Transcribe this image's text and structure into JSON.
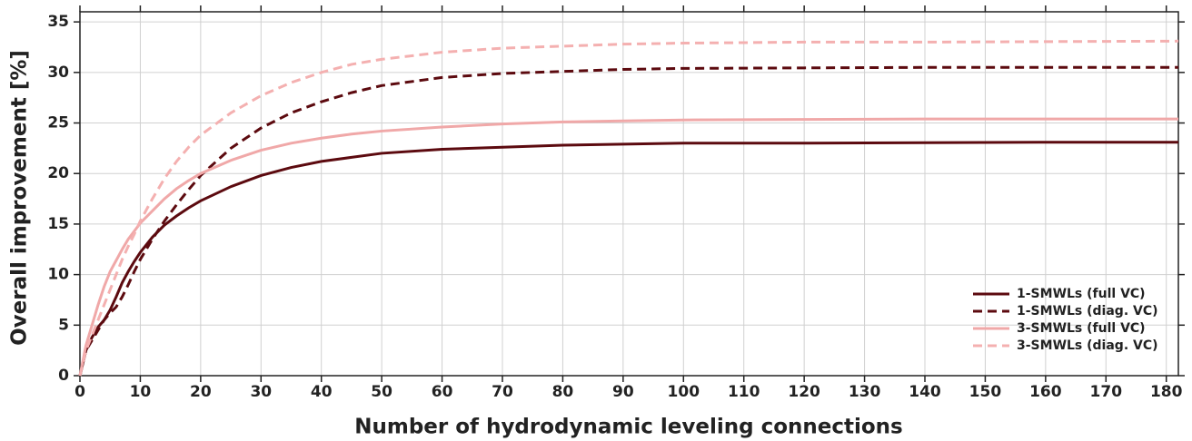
{
  "chart_data": {
    "type": "line",
    "xlabel": "Number of hydrodynamic leveling connections",
    "ylabel": "Overall improvement [%]",
    "x": [
      0,
      1,
      2,
      3,
      4,
      5,
      6,
      7,
      8,
      9,
      10,
      12,
      14,
      16,
      18,
      20,
      25,
      30,
      35,
      40,
      45,
      50,
      60,
      70,
      80,
      90,
      100,
      120,
      140,
      160,
      182
    ],
    "series": [
      {
        "name": "1-SMWLs (full VC)",
        "color": "#5c0a0f",
        "linestyle": "solid",
        "values": [
          0,
          2.5,
          3.8,
          4.8,
          5.5,
          6.5,
          7.8,
          9.2,
          10.3,
          11.3,
          12.2,
          13.7,
          14.9,
          15.8,
          16.6,
          17.3,
          18.7,
          19.8,
          20.6,
          21.2,
          21.6,
          22.0,
          22.4,
          22.6,
          22.8,
          22.9,
          23.0,
          23.0,
          23.05,
          23.1,
          23.1
        ]
      },
      {
        "name": "1-SMWLs (diag. VC)",
        "color": "#5c0a0f",
        "linestyle": "dashed",
        "values": [
          0,
          2.5,
          3.5,
          4.5,
          5.5,
          6.2,
          6.8,
          7.8,
          9,
          10.3,
          11.5,
          13.5,
          15.3,
          16.9,
          18.4,
          19.8,
          22.5,
          24.5,
          26,
          27.1,
          28,
          28.7,
          29.5,
          29.9,
          30.1,
          30.3,
          30.4,
          30.45,
          30.5,
          30.5,
          30.5
        ]
      },
      {
        "name": "3-SMWLs (full VC)",
        "color": "#f0a8a8",
        "linestyle": "solid",
        "values": [
          0,
          3,
          5,
          7,
          8.8,
          10.3,
          11.4,
          12.5,
          13.5,
          14.3,
          15.1,
          16.3,
          17.5,
          18.5,
          19.3,
          20,
          21.3,
          22.3,
          23,
          23.5,
          23.9,
          24.2,
          24.6,
          24.9,
          25.1,
          25.2,
          25.3,
          25.35,
          25.4,
          25.4,
          25.4
        ]
      },
      {
        "name": "3-SMWLs (diag. VC)",
        "color": "#f4b0b0",
        "linestyle": "dashed",
        "values": [
          0,
          2.5,
          4,
          5.5,
          7,
          8.5,
          10,
          11.5,
          12.8,
          14,
          15.3,
          17.5,
          19.5,
          21.2,
          22.6,
          23.8,
          26,
          27.7,
          29,
          30,
          30.8,
          31.3,
          32,
          32.4,
          32.6,
          32.8,
          32.9,
          33,
          33,
          33.05,
          33.1
        ]
      }
    ],
    "xlim": [
      0,
      182
    ],
    "ylim": [
      0,
      36
    ],
    "xticks": [
      0,
      10,
      20,
      30,
      40,
      50,
      60,
      70,
      80,
      90,
      100,
      110,
      120,
      130,
      140,
      150,
      160,
      170,
      180
    ],
    "yticks": [
      0,
      5,
      10,
      15,
      20,
      25,
      30,
      35
    ],
    "grid": true,
    "legend": "lower right"
  }
}
